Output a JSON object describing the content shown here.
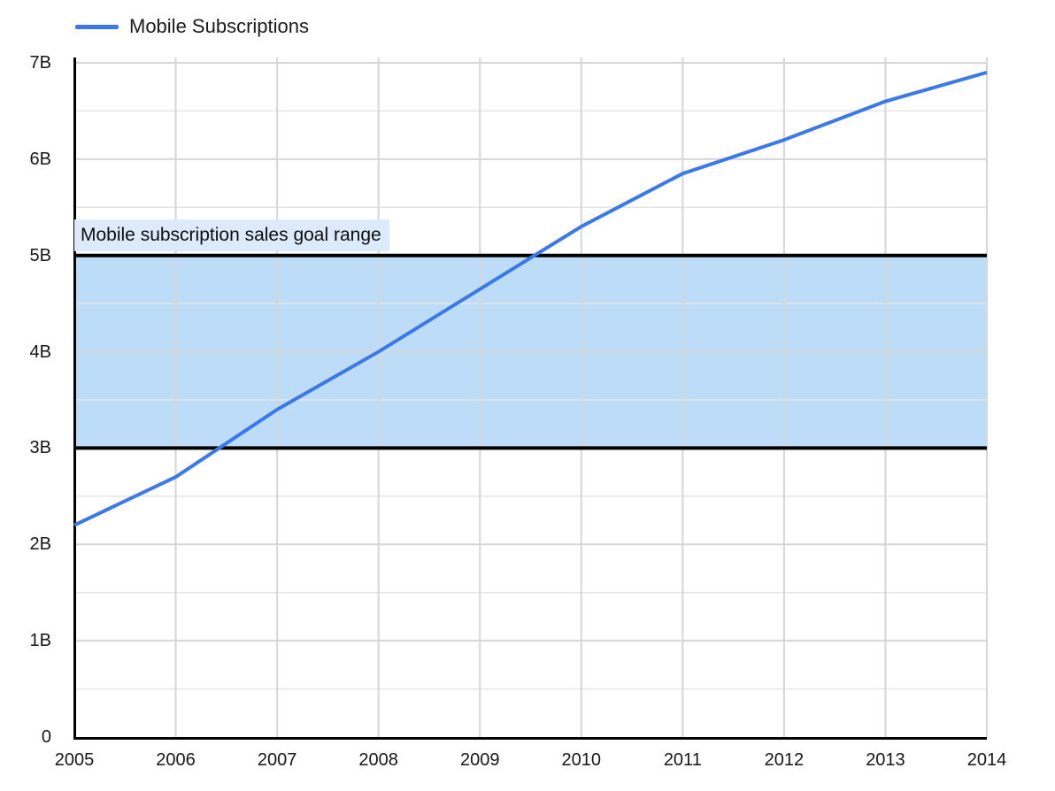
{
  "style_colors": {
    "background": "#ffffff",
    "gridline": "#d6d6d6",
    "minor_gridline": "#e5e5e5",
    "axis": "#000000",
    "tick_text": "#171717"
  },
  "chart_data": {
    "type": "line",
    "title": "",
    "xlabel": "",
    "ylabel": "",
    "x": [
      2005,
      2006,
      2007,
      2008,
      2009,
      2010,
      2011,
      2012,
      2013,
      2014
    ],
    "x_tick_labels": [
      "2005",
      "2006",
      "2007",
      "2008",
      "2009",
      "2010",
      "2011",
      "2012",
      "2013",
      "2014"
    ],
    "y_tick_labels": [
      "0",
      "1B",
      "2B",
      "3B",
      "4B",
      "5B",
      "6B",
      "7B"
    ],
    "ylim": [
      0,
      7
    ],
    "y_unit": "billions",
    "grid": "on",
    "minor_gridline_step_y": 0.5,
    "legend_position": "top-left",
    "series": [
      {
        "name": "Mobile Subscriptions",
        "color": "#3b78e8",
        "values": [
          2.2,
          2.7,
          3.4,
          4.0,
          4.65,
          5.3,
          5.85,
          6.2,
          6.6,
          6.9
        ]
      }
    ],
    "goal_band": {
      "label": "Mobile subscription sales goal range",
      "from": 3,
      "to": 5,
      "fill": "#bcdcf8",
      "border_color": "#000000",
      "label_bg": "#dceafc"
    }
  }
}
